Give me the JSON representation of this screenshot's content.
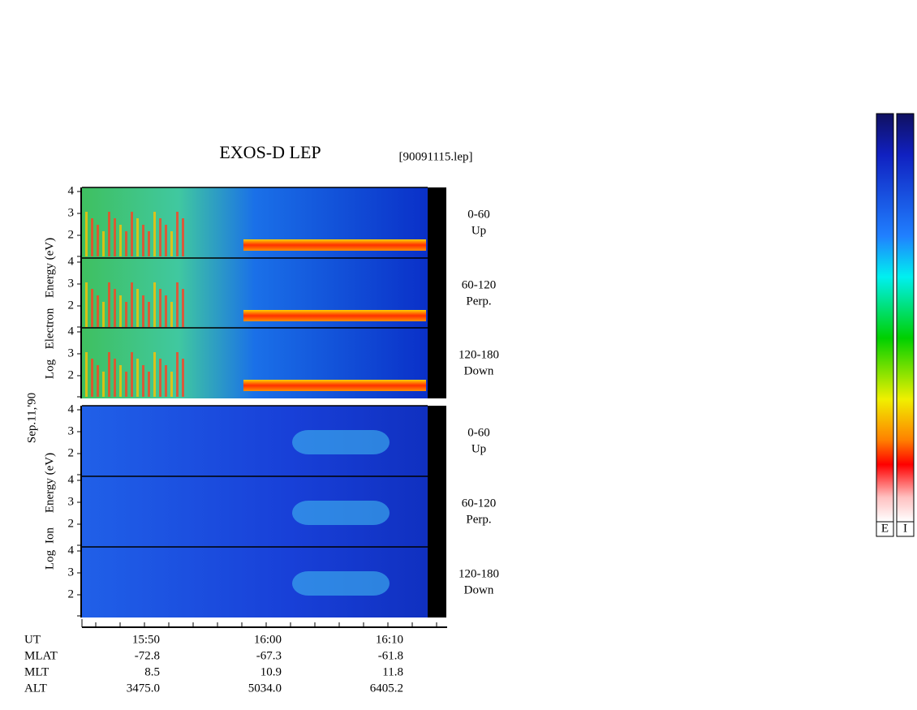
{
  "header": {
    "title": "EXOS-D LEP",
    "file": "[90091115.lep]"
  },
  "date": "Sep.11,'90",
  "electron_label": [
    "Log",
    "Electron",
    "Energy (eV)"
  ],
  "ion_label": [
    "Log",
    "Ion",
    "Energy (eV)"
  ],
  "yticks": [
    "4",
    "3",
    "2"
  ],
  "pitch_angles": [
    {
      "range": "0-60",
      "dir": "Up"
    },
    {
      "range": "60-120",
      "dir": "Perp."
    },
    {
      "range": "120-180",
      "dir": "Down"
    }
  ],
  "orbit": {
    "rows": [
      [
        "UT",
        "15:50",
        "16:00",
        "16:10"
      ],
      [
        "MLAT",
        "-72.8",
        "-67.3",
        "-61.8"
      ],
      [
        "MLT",
        "8.5",
        "10.9",
        "11.8"
      ],
      [
        "ALT",
        "3475.0",
        "5034.0",
        "6405.2"
      ]
    ]
  },
  "colorbars": [
    "E",
    "I"
  ]
}
